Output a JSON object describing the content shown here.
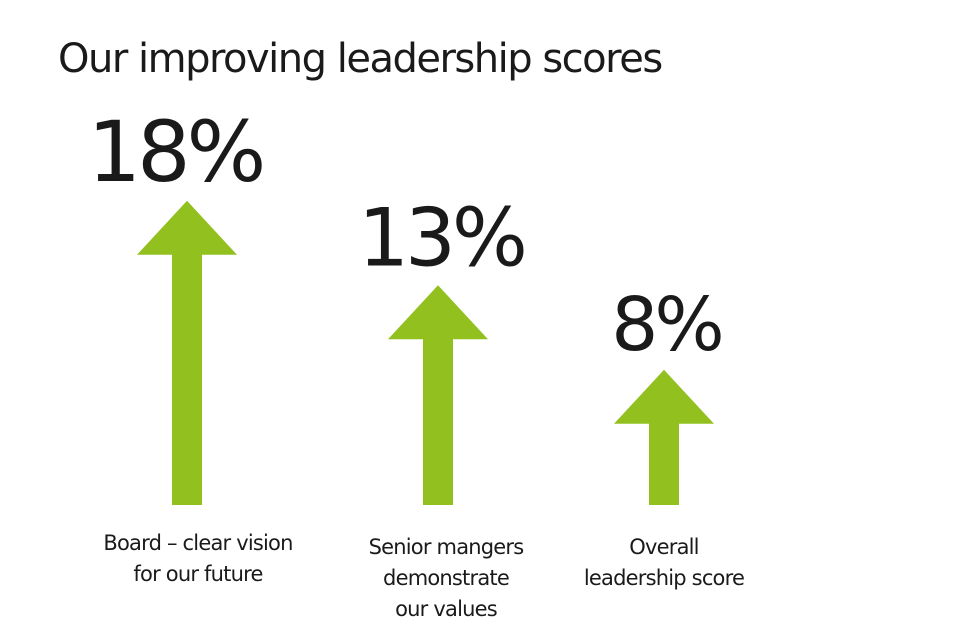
{
  "title": "Our improving leadership scores",
  "colors": {
    "arrow": "#92c01f",
    "text": "#1a1a1a",
    "background": "#ffffff"
  },
  "chart_data": {
    "type": "bar",
    "title": "Our improving leadership scores",
    "categories": [
      [
        "Board – clear vision",
        "for our future"
      ],
      [
        "Senior mangers",
        "demonstrate",
        "our values"
      ],
      [
        "Overall",
        "leadership score"
      ]
    ],
    "values": [
      18,
      13,
      8
    ],
    "value_labels": [
      "18%",
      "13%",
      "8%"
    ],
    "unit": "%",
    "xlabel": "",
    "ylabel": "",
    "grid": false
  }
}
